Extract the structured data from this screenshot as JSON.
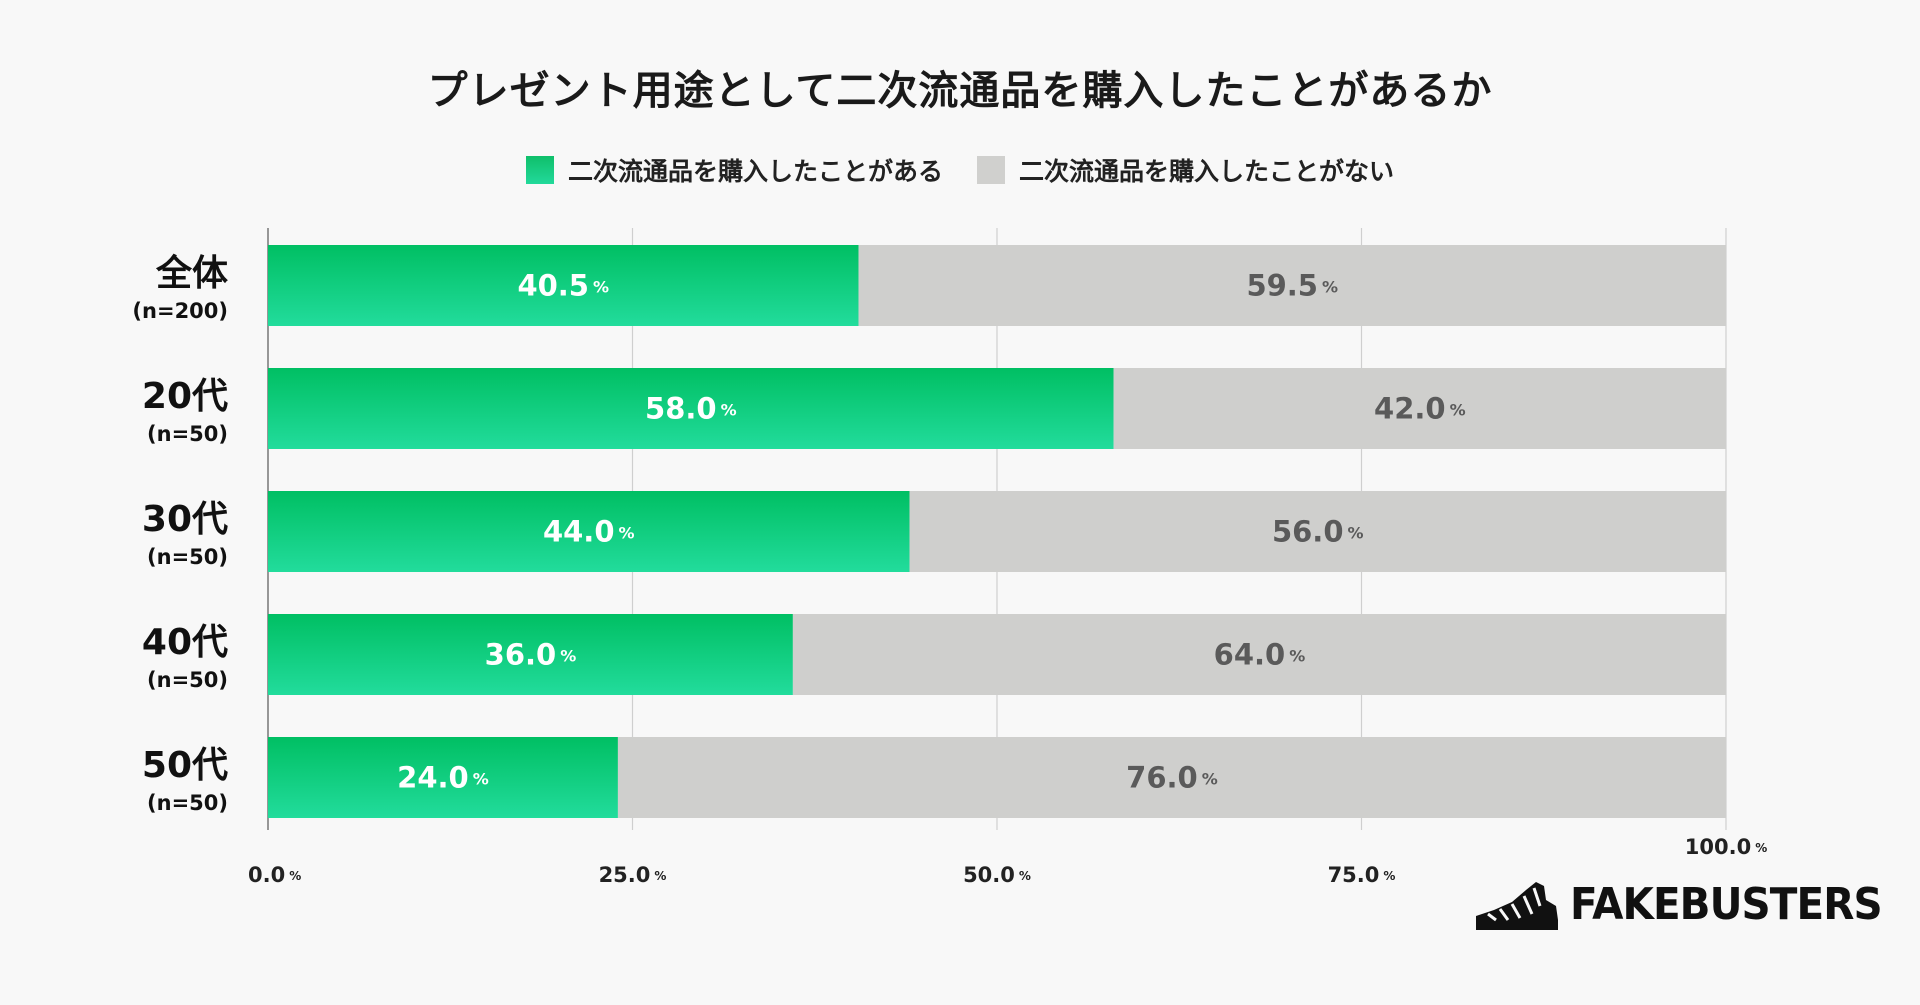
{
  "chart_data": {
    "type": "bar",
    "orientation": "horizontal",
    "stacked": true,
    "title": "プレゼント用途として二次流通品を購入したことがあるか",
    "categories": [
      {
        "label": "全体",
        "sub": "(n=200)"
      },
      {
        "label": "20代",
        "sub": "(n=50)"
      },
      {
        "label": "30代",
        "sub": "(n=50)"
      },
      {
        "label": "40代",
        "sub": "(n=50)"
      },
      {
        "label": "50代",
        "sub": "(n=50)"
      }
    ],
    "series": [
      {
        "name": "二次流通品を購入したことがある",
        "values": [
          40.5,
          58.0,
          44.0,
          36.0,
          24.0
        ],
        "color_top": "#00bf63",
        "color_bottom": "#22dc9c",
        "label_color": "#ffffff"
      },
      {
        "name": "二次流通品を購入したことがない",
        "values": [
          59.5,
          42.0,
          56.0,
          64.0,
          76.0
        ],
        "color": "#cfcfcd",
        "label_color": "#5a5a5a"
      }
    ],
    "value_suffix": "%",
    "xlim": [
      0,
      100
    ],
    "xticks": [
      "0.0",
      "25.0",
      "50.0",
      "75.0",
      "100.0"
    ],
    "grid": true,
    "legend": "top-center"
  },
  "brand": {
    "name": "FAKEBUSTERS"
  }
}
